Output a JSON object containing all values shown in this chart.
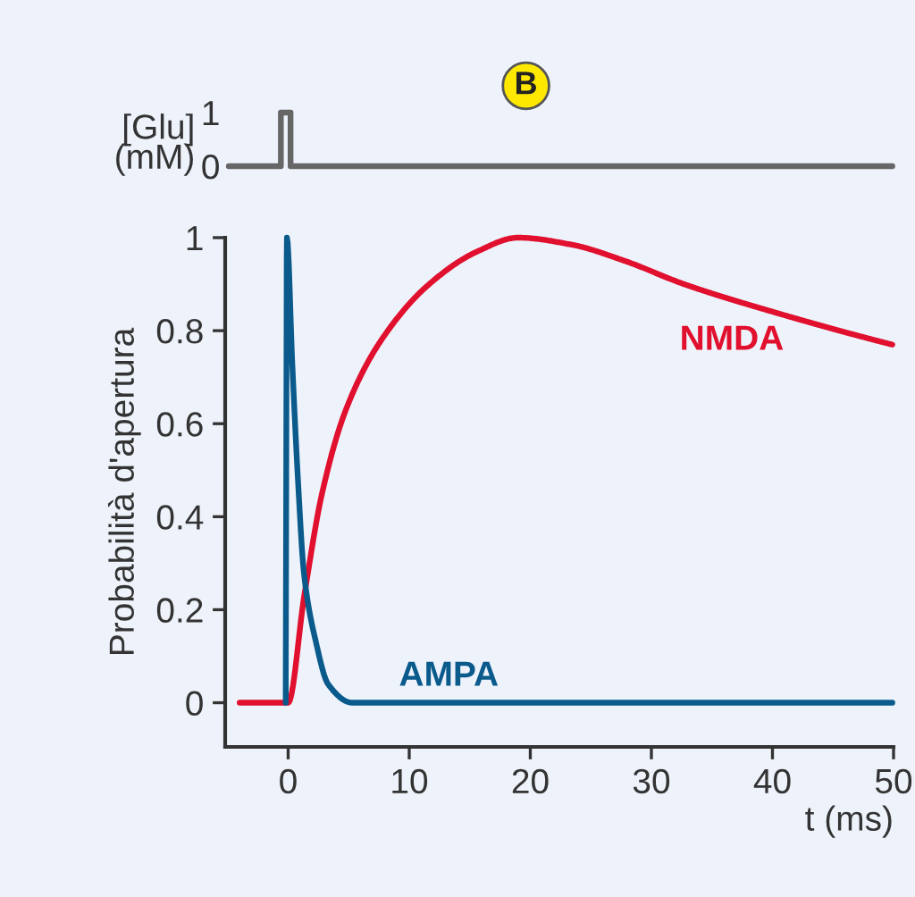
{
  "chart_data": [
    {
      "type": "line",
      "ylabel": "[Glu]\n(mM)",
      "annotations": [
        "B"
      ],
      "tick_labels": "y",
      "xticks": [
        0,
        10,
        20,
        30,
        40,
        50
      ],
      "ylim": [
        0,
        1
      ],
      "yticks": [
        0,
        1
      ],
      "series": [
        {
          "color": "#666666",
          "x": [
            -4.9,
            -0.6,
            -0.6,
            0.2,
            0.2,
            49.9
          ],
          "values": [
            0,
            0,
            1,
            1,
            0,
            0
          ]
        }
      ]
    },
    {
      "type": "line",
      "xlabel": "t (ms)",
      "ylabel": "Probabilità d'apertura",
      "xlim": [
        -5.2,
        50
      ],
      "ylim": [
        -0.095,
        1
      ],
      "xticks": [
        0,
        10,
        20,
        30,
        40,
        50
      ],
      "yticks": [
        0,
        0.2,
        0.4,
        0.6,
        0.8,
        1
      ],
      "series": [
        {
          "name": "NMDA",
          "color": "#e0102e",
          "x": [
            -4,
            0,
            1.33,
            2.8,
            4.77,
            7.7,
            11.65,
            15.6,
            19.0,
            23.4,
            27.8,
            32.7,
            40.1,
            49.9
          ],
          "values": [
            0,
            0,
            0.23,
            0.45,
            0.63,
            0.78,
            0.9,
            0.97,
            1.0,
            0.985,
            0.95,
            0.9,
            0.84,
            0.77
          ]
        },
        {
          "name": "AMPA",
          "color": "#0a5a8c",
          "x": [
            -0.2,
            -0.1,
            0.34,
            0.83,
            1.3,
            2.3,
            3.3,
            5.3,
            49.9
          ],
          "values": [
            0,
            1,
            0.73,
            0.47,
            0.28,
            0.13,
            0.04,
            0,
            0
          ]
        }
      ]
    }
  ]
}
